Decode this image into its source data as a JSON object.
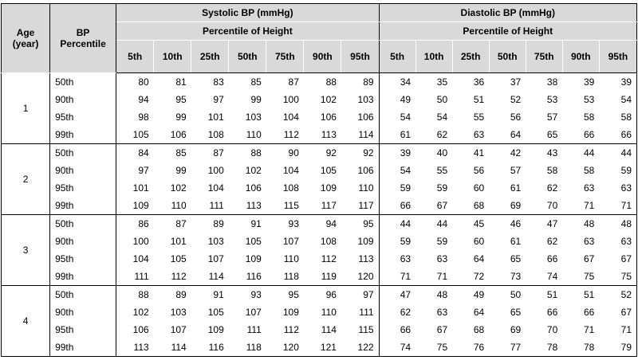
{
  "header": {
    "age": "Age\n(year)",
    "bp_percentile": "BP\nPercentile",
    "systolic": "Systolic BP (mmHg)",
    "diastolic": "Diastolic BP (mmHg)",
    "pct_of_height": "Percentile of Height",
    "height_cols": [
      "5th",
      "10th",
      "25th",
      "50th",
      "75th",
      "90th",
      "95th"
    ]
  },
  "groups": [
    {
      "age": "1",
      "rows": [
        {
          "pct": "50th",
          "sys": [
            "80",
            "81",
            "83",
            "85",
            "87",
            "88",
            "89"
          ],
          "dia": [
            "34",
            "35",
            "36",
            "37",
            "38",
            "39",
            "39"
          ]
        },
        {
          "pct": "90th",
          "sys": [
            "94",
            "95",
            "97",
            "99",
            "100",
            "102",
            "103"
          ],
          "dia": [
            "49",
            "50",
            "51",
            "52",
            "53",
            "53",
            "54"
          ]
        },
        {
          "pct": "95th",
          "sys": [
            "98",
            "99",
            "101",
            "103",
            "104",
            "106",
            "106"
          ],
          "dia": [
            "54",
            "54",
            "55",
            "56",
            "57",
            "58",
            "58"
          ]
        },
        {
          "pct": "99th",
          "sys": [
            "105",
            "106",
            "108",
            "110",
            "112",
            "113",
            "114"
          ],
          "dia": [
            "61",
            "62",
            "63",
            "64",
            "65",
            "66",
            "66"
          ]
        }
      ]
    },
    {
      "age": "2",
      "rows": [
        {
          "pct": "50th",
          "sys": [
            "84",
            "85",
            "87",
            "88",
            "90",
            "92",
            "92"
          ],
          "dia": [
            "39",
            "40",
            "41",
            "42",
            "43",
            "44",
            "44"
          ]
        },
        {
          "pct": "90th",
          "sys": [
            "97",
            "99",
            "100",
            "102",
            "104",
            "105",
            "106"
          ],
          "dia": [
            "54",
            "55",
            "56",
            "57",
            "58",
            "58",
            "59"
          ]
        },
        {
          "pct": "95th",
          "sys": [
            "101",
            "102",
            "104",
            "106",
            "108",
            "109",
            "110"
          ],
          "dia": [
            "59",
            "59",
            "60",
            "61",
            "62",
            "63",
            "63"
          ]
        },
        {
          "pct": "99th",
          "sys": [
            "109",
            "110",
            "111",
            "113",
            "115",
            "117",
            "117"
          ],
          "dia": [
            "66",
            "67",
            "68",
            "69",
            "70",
            "71",
            "71"
          ]
        }
      ]
    },
    {
      "age": "3",
      "rows": [
        {
          "pct": "50th",
          "sys": [
            "86",
            "87",
            "89",
            "91",
            "93",
            "94",
            "95"
          ],
          "dia": [
            "44",
            "44",
            "45",
            "46",
            "47",
            "48",
            "48"
          ]
        },
        {
          "pct": "90th",
          "sys": [
            "100",
            "101",
            "103",
            "105",
            "107",
            "108",
            "109"
          ],
          "dia": [
            "59",
            "59",
            "60",
            "61",
            "62",
            "63",
            "63"
          ]
        },
        {
          "pct": "95th",
          "sys": [
            "104",
            "105",
            "107",
            "109",
            "110",
            "112",
            "113"
          ],
          "dia": [
            "63",
            "63",
            "64",
            "65",
            "66",
            "67",
            "67"
          ]
        },
        {
          "pct": "99th",
          "sys": [
            "111",
            "112",
            "114",
            "116",
            "118",
            "119",
            "120"
          ],
          "dia": [
            "71",
            "71",
            "72",
            "73",
            "74",
            "75",
            "75"
          ]
        }
      ]
    },
    {
      "age": "4",
      "rows": [
        {
          "pct": "50th",
          "sys": [
            "88",
            "89",
            "91",
            "93",
            "95",
            "96",
            "97"
          ],
          "dia": [
            "47",
            "48",
            "49",
            "50",
            "51",
            "51",
            "52"
          ]
        },
        {
          "pct": "90th",
          "sys": [
            "102",
            "103",
            "105",
            "107",
            "109",
            "110",
            "111"
          ],
          "dia": [
            "62",
            "63",
            "64",
            "65",
            "66",
            "66",
            "67"
          ]
        },
        {
          "pct": "95th",
          "sys": [
            "106",
            "107",
            "109",
            "111",
            "112",
            "114",
            "115"
          ],
          "dia": [
            "66",
            "67",
            "68",
            "69",
            "70",
            "71",
            "71"
          ]
        },
        {
          "pct": "99th",
          "sys": [
            "113",
            "114",
            "116",
            "118",
            "120",
            "121",
            "122"
          ],
          "dia": [
            "74",
            "75",
            "76",
            "77",
            "78",
            "78",
            "79"
          ]
        }
      ]
    }
  ]
}
